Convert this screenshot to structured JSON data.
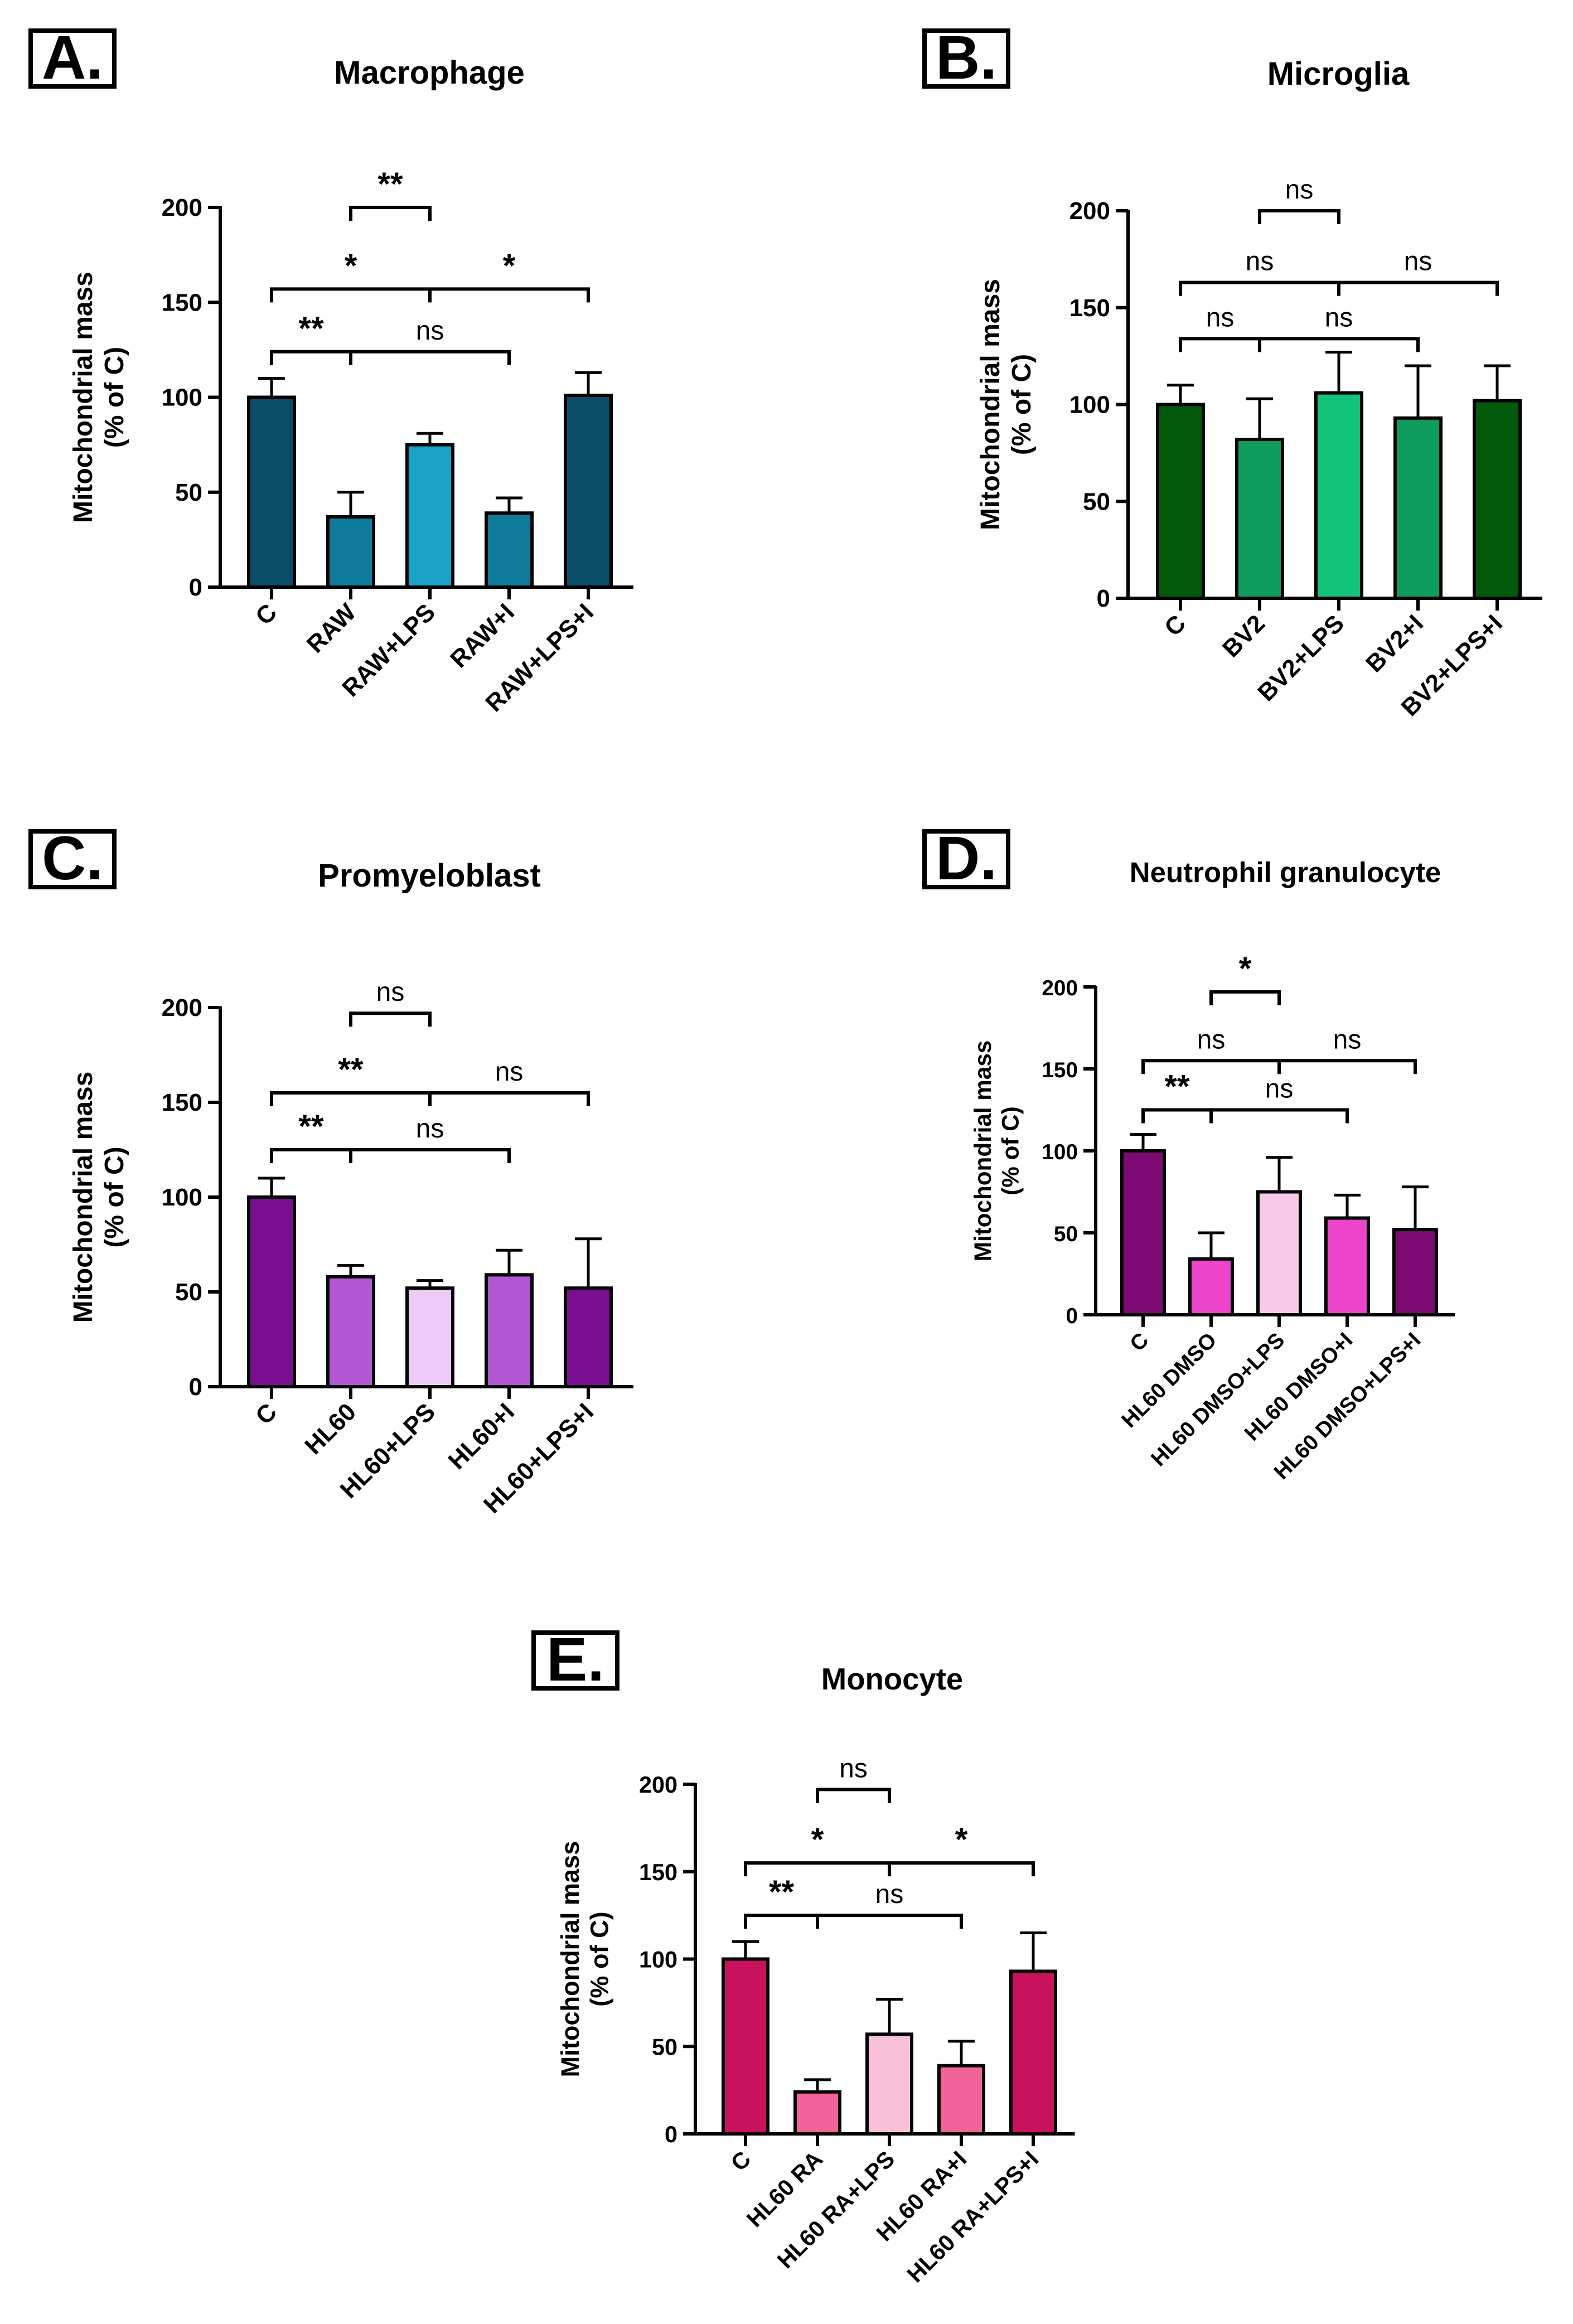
{
  "chart_data": [
    {
      "type": "bar",
      "panel_label": "A.",
      "title": "Macrophage",
      "ylabel_line1": "Mitochondrial mass",
      "ylabel_line2": "(% of C)",
      "ylim": [
        0,
        200
      ],
      "yticks": [
        "0",
        "50",
        "100",
        "150",
        "200"
      ],
      "categories": [
        "C",
        "RAW",
        "RAW+LPS",
        "RAW+I",
        "RAW+LPS+I"
      ],
      "values": [
        100,
        37,
        75,
        39,
        101
      ],
      "errors": [
        10,
        13,
        6,
        8,
        12
      ],
      "colors": [
        "#0a4d68",
        "#0d7b99",
        "#1aa3c8",
        "#0d7b99",
        "#0a4d68"
      ],
      "comparisons": [
        {
          "from": 1,
          "to": 2,
          "level": 200,
          "label": "**",
          "bold": true
        },
        {
          "from": 0,
          "to": 4,
          "mid": 2,
          "level": 157,
          "label_left": "*",
          "label_right": "*",
          "bold": true
        },
        {
          "from": 0,
          "to": 3,
          "mid": 1,
          "level": 124,
          "label_left": "**",
          "label_right": "ns",
          "bold": true
        }
      ]
    },
    {
      "type": "bar",
      "panel_label": "B.",
      "title": "Microglia",
      "ylabel_line1": "Mitochondrial mass",
      "ylabel_line2": "(% of C)",
      "ylim": [
        0,
        200
      ],
      "yticks": [
        "0",
        "50",
        "100",
        "150",
        "200"
      ],
      "categories": [
        "C",
        "BV2",
        "BV2+LPS",
        "BV2+I",
        "BV2+LPS+I"
      ],
      "values": [
        100,
        82,
        106,
        93,
        102
      ],
      "errors": [
        10,
        21,
        21,
        27,
        18
      ],
      "colors": [
        "#005a0a",
        "#0e9c5c",
        "#12c47a",
        "#0e9c5c",
        "#005a0a"
      ],
      "comparisons": [
        {
          "from": 1,
          "to": 2,
          "level": 200,
          "label": "ns",
          "bold": false
        },
        {
          "from": 0,
          "to": 4,
          "mid": 2,
          "level": 163,
          "label_left": "ns",
          "label_right": "ns",
          "bold": false
        },
        {
          "from": 0,
          "to": 3,
          "mid": 1,
          "level": 134,
          "label_left": "ns",
          "label_right": "ns",
          "bold": false
        }
      ]
    },
    {
      "type": "bar",
      "panel_label": "C.",
      "title": "Promyeloblast",
      "ylabel_line1": "Mitochondrial mass",
      "ylabel_line2": "(% of C)",
      "ylim": [
        0,
        200
      ],
      "yticks": [
        "0",
        "50",
        "100",
        "150",
        "200"
      ],
      "categories": [
        "C",
        "HL60",
        "HL60+LPS",
        "HL60+I",
        "HL60+LPS+I"
      ],
      "values": [
        100,
        58,
        52,
        59,
        52
      ],
      "errors": [
        10,
        6,
        4,
        13,
        26
      ],
      "colors": [
        "#7a0e91",
        "#b356d4",
        "#eccbf7",
        "#b356d4",
        "#7a0e91"
      ],
      "comparisons": [
        {
          "from": 1,
          "to": 2,
          "level": 197,
          "label": "ns",
          "bold": false
        },
        {
          "from": 0,
          "to": 4,
          "mid": 2,
          "level": 155,
          "label_left": "**",
          "label_right": "ns",
          "bold": true
        },
        {
          "from": 0,
          "to": 3,
          "mid": 1,
          "level": 125,
          "label_left": "**",
          "label_right": "ns",
          "bold": true
        }
      ]
    },
    {
      "type": "bar",
      "panel_label": "D.",
      "title": "Neutrophil granulocyte",
      "ylabel_line1": "Mitochondrial mass",
      "ylabel_line2": "(% of C)",
      "ylim": [
        0,
        200
      ],
      "yticks": [
        "0",
        "50",
        "100",
        "150",
        "200"
      ],
      "categories": [
        "C",
        "HL60 DMSO",
        "HL60 DMSO+LPS",
        "HL60 DMSO+I",
        "HL60 DMSO+LPS+I"
      ],
      "values": [
        100,
        34,
        75,
        59,
        52
      ],
      "errors": [
        10,
        16,
        21,
        14,
        26
      ],
      "colors": [
        "#7d0a73",
        "#ee44cc",
        "#f9c9ea",
        "#ee44cc",
        "#7d0a73"
      ],
      "comparisons": [
        {
          "from": 1,
          "to": 2,
          "level": 197,
          "label": "*",
          "bold": true
        },
        {
          "from": 0,
          "to": 4,
          "mid": 2,
          "level": 155,
          "label_left": "ns",
          "label_right": "ns",
          "bold": false
        },
        {
          "from": 0,
          "to": 3,
          "mid": 1,
          "level": 125,
          "label_left": "**",
          "label_right": "ns",
          "bold": true
        }
      ]
    },
    {
      "type": "bar",
      "panel_label": "E.",
      "title": "Monocyte",
      "ylabel_line1": "Mitochondrial mass",
      "ylabel_line2": "(% of C)",
      "ylim": [
        0,
        200
      ],
      "yticks": [
        "0",
        "50",
        "100",
        "150",
        "200"
      ],
      "categories": [
        "C",
        "HL60 RA",
        "HL60 RA+LPS",
        "HL60 RA+I",
        "HL60 RA+LPS+I"
      ],
      "values": [
        100,
        24,
        57,
        39,
        93
      ],
      "errors": [
        10,
        7,
        20,
        14,
        22
      ],
      "colors": [
        "#c8125e",
        "#f2639a",
        "#f9c1d8",
        "#f2639a",
        "#c8125e"
      ],
      "comparisons": [
        {
          "from": 1,
          "to": 2,
          "level": 197,
          "label": "ns",
          "bold": false
        },
        {
          "from": 0,
          "to": 4,
          "mid": 2,
          "level": 155,
          "label_left": "*",
          "label_right": "*",
          "bold": true
        },
        {
          "from": 0,
          "to": 3,
          "mid": 1,
          "level": 125,
          "label_left": "**",
          "label_right": "ns",
          "bold": true
        }
      ]
    }
  ]
}
